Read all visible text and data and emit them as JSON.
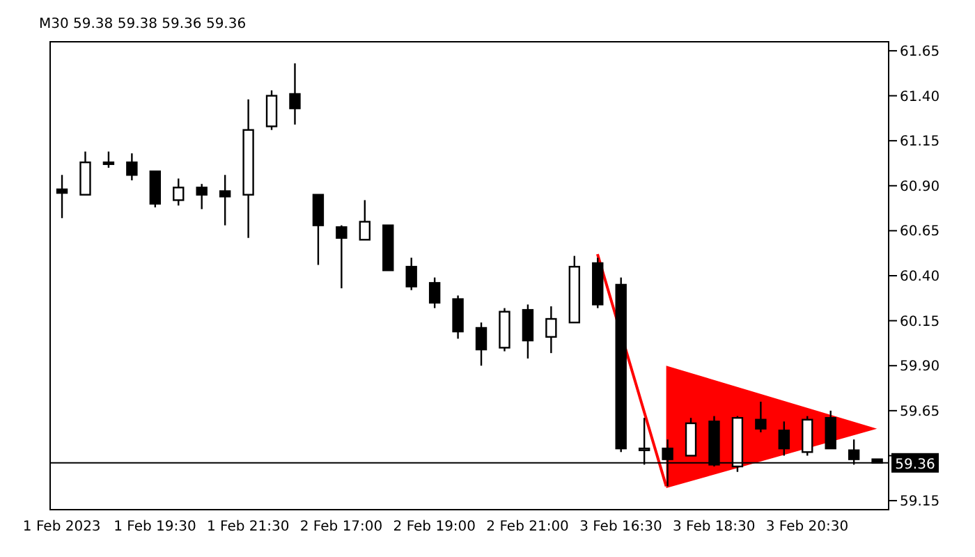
{
  "chart_data": {
    "type": "candlestick",
    "title": "M30  59.38 59.38 59.36 59.36",
    "categories": [
      "1 Feb 2023",
      null,
      null,
      null,
      "1 Feb 19:30",
      null,
      null,
      null,
      "1 Feb 21:30",
      null,
      null,
      null,
      "2 Feb 17:00",
      null,
      null,
      null,
      "2 Feb 19:00",
      null,
      null,
      null,
      "2 Feb 21:00",
      null,
      null,
      null,
      "3 Feb 16:30",
      null,
      null,
      null,
      "3 Feb 18:30",
      null,
      null,
      null,
      "3 Feb 20:30",
      null,
      null,
      null
    ],
    "ohlc": [
      [
        60.88,
        60.96,
        60.72,
        60.86
      ],
      [
        60.85,
        61.09,
        60.85,
        61.03
      ],
      [
        61.03,
        61.09,
        61.0,
        61.02
      ],
      [
        61.03,
        61.08,
        60.93,
        60.96
      ],
      [
        60.98,
        60.98,
        60.78,
        60.8
      ],
      [
        60.82,
        60.94,
        60.79,
        60.89
      ],
      [
        60.89,
        60.91,
        60.77,
        60.85
      ],
      [
        60.87,
        60.96,
        60.68,
        60.84
      ],
      [
        60.85,
        61.38,
        60.61,
        61.21
      ],
      [
        61.23,
        61.43,
        61.21,
        61.4
      ],
      [
        61.41,
        61.58,
        61.24,
        61.33
      ],
      [
        60.85,
        60.85,
        60.46,
        60.68
      ],
      [
        60.67,
        60.68,
        60.33,
        60.61
      ],
      [
        60.6,
        60.82,
        60.6,
        60.7
      ],
      [
        60.68,
        60.68,
        60.43,
        60.43
      ],
      [
        60.45,
        60.5,
        60.32,
        60.34
      ],
      [
        60.36,
        60.39,
        60.22,
        60.25
      ],
      [
        60.27,
        60.29,
        60.05,
        60.09
      ],
      [
        60.11,
        60.14,
        59.9,
        59.99
      ],
      [
        60.0,
        60.22,
        59.98,
        60.2
      ],
      [
        60.21,
        60.24,
        59.94,
        60.04
      ],
      [
        60.06,
        60.23,
        59.97,
        60.16
      ],
      [
        60.14,
        60.51,
        60.14,
        60.45
      ],
      [
        60.47,
        60.5,
        60.22,
        60.24
      ],
      [
        60.35,
        60.39,
        59.42,
        59.44
      ],
      [
        59.43,
        59.61,
        59.35,
        59.44
      ],
      [
        59.44,
        59.49,
        59.23,
        59.38
      ],
      [
        59.4,
        59.61,
        59.4,
        59.58
      ],
      [
        59.59,
        59.62,
        59.34,
        59.35
      ],
      [
        59.34,
        59.62,
        59.31,
        59.61
      ],
      [
        59.6,
        59.7,
        59.53,
        59.55
      ],
      [
        59.54,
        59.59,
        59.4,
        59.44
      ],
      [
        59.42,
        59.62,
        59.4,
        59.6
      ],
      [
        59.61,
        59.65,
        59.44,
        59.44
      ],
      [
        59.43,
        59.49,
        59.35,
        59.38
      ],
      [
        59.38,
        59.38,
        59.36,
        59.36
      ]
    ],
    "ylim": [
      59.1,
      61.7
    ],
    "yticks": [
      59.15,
      {
        "value": 59.4,
        "label": null
      },
      59.65,
      {
        "value": 59.9,
        "label": "59.90"
      },
      60.15,
      {
        "value": 60.4,
        "label": "60.40"
      },
      60.65,
      {
        "value": 60.9,
        "label": "60.90"
      },
      61.15,
      {
        "value": 61.4,
        "label": "61.40"
      },
      61.65
    ],
    "ref_lines": [
      {
        "axis": "y",
        "value": 59.36,
        "label": "59.36",
        "color": "#000000"
      }
    ],
    "line_style": "solid"
  }
}
